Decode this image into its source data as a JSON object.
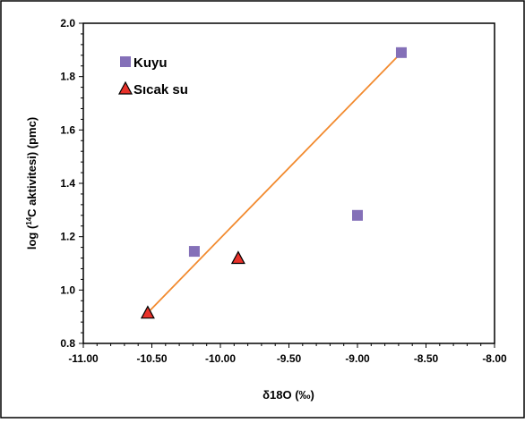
{
  "chart_data": {
    "type": "scatter",
    "title": "",
    "xlabel": "δ18O (‰)",
    "ylabel_pre": "log (",
    "ylabel_sup": "14",
    "ylabel_post": "C aktivitesi) (pmc)",
    "xlim": [
      -11.0,
      -8.0
    ],
    "ylim": [
      0.8,
      2.0
    ],
    "x_ticks": [
      -11.0,
      -10.5,
      -10.0,
      -9.5,
      -9.0,
      -8.5,
      -8.0
    ],
    "x_tick_labels": [
      "-11.00",
      "-10.50",
      "-10.00",
      "-9.50",
      "-9.00",
      "-8.50",
      "-8.00"
    ],
    "y_ticks": [
      0.8,
      1.0,
      1.2,
      1.4,
      1.6,
      1.8,
      2.0
    ],
    "y_tick_labels": [
      "0.8",
      "1.0",
      "1.2",
      "1.4",
      "1.6",
      "1.8",
      "2.0"
    ],
    "grid": false,
    "legend_position": "top-left",
    "series": [
      {
        "name": "Kuyu",
        "marker": "square",
        "color": "#8470b8",
        "points": [
          {
            "x": -10.19,
            "y": 1.145
          },
          {
            "x": -9.0,
            "y": 1.28
          },
          {
            "x": -8.68,
            "y": 1.89
          }
        ]
      },
      {
        "name": "Sıcak su",
        "marker": "triangle",
        "color": "#e8312a",
        "points": [
          {
            "x": -10.53,
            "y": 0.915
          },
          {
            "x": -9.87,
            "y": 1.12
          }
        ]
      }
    ],
    "trendline": {
      "color": "#f28a2e",
      "from": {
        "x": -10.53,
        "y": 0.915
      },
      "to": {
        "x": -8.68,
        "y": 1.89
      }
    }
  }
}
